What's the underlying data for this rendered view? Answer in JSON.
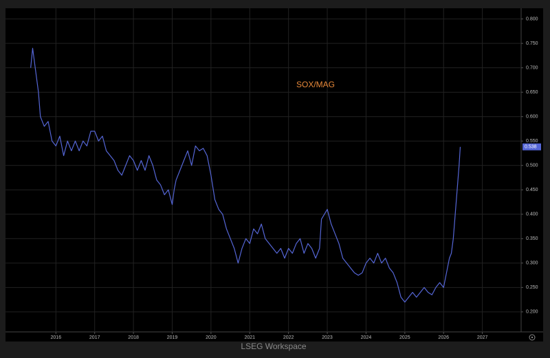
{
  "chart_data": {
    "type": "line",
    "title": "SOX/MAG",
    "footer": "LSEG Workspace",
    "series": [
      {
        "name": "SOX/MAG",
        "color": "#5566d6",
        "x": [
          2015.35,
          2015.4,
          2015.45,
          2015.55,
          2015.6,
          2015.7,
          2015.8,
          2015.9,
          2016.0,
          2016.1,
          2016.2,
          2016.3,
          2016.4,
          2016.5,
          2016.6,
          2016.7,
          2016.8,
          2016.9,
          2017.0,
          2017.1,
          2017.2,
          2017.3,
          2017.4,
          2017.5,
          2017.6,
          2017.7,
          2017.8,
          2017.9,
          2018.0,
          2018.1,
          2018.2,
          2018.3,
          2018.4,
          2018.5,
          2018.6,
          2018.7,
          2018.8,
          2018.9,
          2019.0,
          2019.05,
          2019.1,
          2019.2,
          2019.3,
          2019.4,
          2019.5,
          2019.6,
          2019.7,
          2019.8,
          2019.9,
          2020.0,
          2020.1,
          2020.2,
          2020.3,
          2020.4,
          2020.5,
          2020.6,
          2020.7,
          2020.8,
          2020.9,
          2021.0,
          2021.1,
          2021.2,
          2021.3,
          2021.4,
          2021.5,
          2021.6,
          2021.7,
          2021.8,
          2021.9,
          2022.0,
          2022.1,
          2022.2,
          2022.3,
          2022.4,
          2022.5,
          2022.6,
          2022.7,
          2022.8,
          2022.85,
          2023.0,
          2023.1,
          2023.2,
          2023.3,
          2023.4,
          2023.5,
          2023.6,
          2023.7,
          2023.8,
          2023.9,
          2024.0,
          2024.1,
          2024.2,
          2024.3,
          2024.4,
          2024.5,
          2024.6,
          2024.7,
          2024.8,
          2024.9,
          2025.0,
          2025.1,
          2025.2,
          2025.3,
          2025.4,
          2025.5,
          2025.6,
          2025.7,
          2025.8,
          2025.9,
          2026.0,
          2026.05,
          2026.1,
          2026.15,
          2026.2,
          2026.25,
          2026.3,
          2026.35,
          2026.4,
          2026.43
        ],
        "values": [
          0.7,
          0.74,
          0.71,
          0.65,
          0.6,
          0.58,
          0.59,
          0.55,
          0.54,
          0.56,
          0.52,
          0.55,
          0.53,
          0.55,
          0.53,
          0.55,
          0.54,
          0.57,
          0.57,
          0.55,
          0.56,
          0.53,
          0.52,
          0.51,
          0.49,
          0.48,
          0.5,
          0.52,
          0.51,
          0.49,
          0.51,
          0.49,
          0.52,
          0.5,
          0.47,
          0.46,
          0.44,
          0.45,
          0.42,
          0.45,
          0.47,
          0.49,
          0.51,
          0.53,
          0.5,
          0.54,
          0.53,
          0.535,
          0.52,
          0.48,
          0.43,
          0.41,
          0.4,
          0.37,
          0.35,
          0.33,
          0.3,
          0.33,
          0.35,
          0.34,
          0.37,
          0.36,
          0.38,
          0.35,
          0.34,
          0.33,
          0.32,
          0.33,
          0.31,
          0.33,
          0.32,
          0.34,
          0.35,
          0.32,
          0.34,
          0.33,
          0.31,
          0.33,
          0.39,
          0.41,
          0.38,
          0.36,
          0.34,
          0.31,
          0.3,
          0.29,
          0.28,
          0.275,
          0.28,
          0.3,
          0.31,
          0.3,
          0.32,
          0.3,
          0.31,
          0.29,
          0.28,
          0.26,
          0.23,
          0.22,
          0.23,
          0.24,
          0.23,
          0.24,
          0.25,
          0.24,
          0.235,
          0.25,
          0.26,
          0.25,
          0.27,
          0.29,
          0.31,
          0.32,
          0.35,
          0.4,
          0.45,
          0.5,
          0.538
        ]
      }
    ],
    "current_marker": {
      "value": 0.538,
      "label": "0.538"
    },
    "xlim": [
      2014.7,
      2028.0
    ],
    "xticks": [
      2016,
      2017,
      2018,
      2019,
      2020,
      2021,
      2022,
      2023,
      2024,
      2025,
      2026,
      2027
    ],
    "ylim": [
      0.159,
      0.822
    ],
    "yticks": [
      {
        "value": 0.2,
        "label": "0.200"
      },
      {
        "value": 0.25,
        "label": "0.250"
      },
      {
        "value": 0.3,
        "label": "0.300"
      },
      {
        "value": 0.35,
        "label": "0.350"
      },
      {
        "value": 0.4,
        "label": "0.400"
      },
      {
        "value": 0.45,
        "label": "0.450"
      },
      {
        "value": 0.5,
        "label": "0.500"
      },
      {
        "value": 0.55,
        "label": "0.550"
      },
      {
        "value": 0.6,
        "label": "0.600"
      },
      {
        "value": 0.65,
        "label": "0.650"
      },
      {
        "value": 0.7,
        "label": "0.700"
      },
      {
        "value": 0.75,
        "label": "0.750"
      },
      {
        "value": 0.8,
        "label": "0.800"
      }
    ],
    "grid": true
  }
}
